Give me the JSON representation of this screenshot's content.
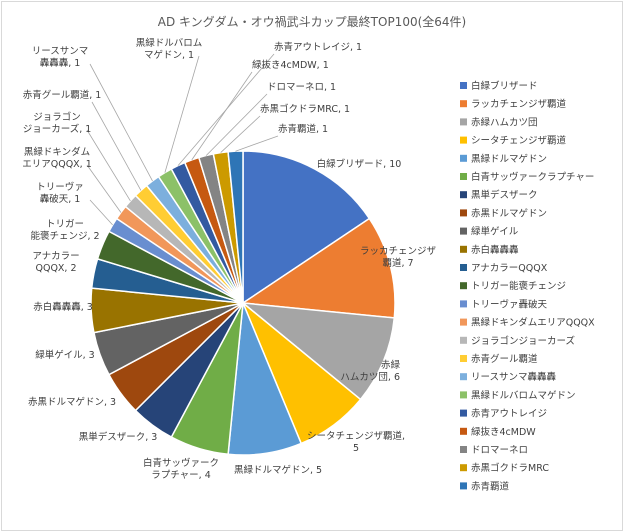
{
  "chart_data": {
    "type": "pie",
    "title": "AD キングダム・オウ禍武斗カップ最終TOP100(全64件)",
    "legend_position": "right",
    "slices": [
      {
        "label": "白緑ブリザード",
        "value": 10,
        "color": "#4472C4",
        "data_label": [
          "白緑ブリザード, 10"
        ]
      },
      {
        "label": "ラッカチェンジザ覇道",
        "value": 7,
        "color": "#ED7D31",
        "data_label": [
          "ラッカチェンジザ",
          "覇道, 7"
        ]
      },
      {
        "label": "赤緑ハムカツ団",
        "value": 6,
        "color": "#A5A5A5",
        "data_label": [
          "赤緑",
          "ハムカツ団, 6"
        ]
      },
      {
        "label": "シータチェンジザ覇道",
        "value": 5,
        "color": "#FFC000",
        "data_label": [
          "シータチェンジザ覇道,",
          "5"
        ]
      },
      {
        "label": "黒緑ドルマゲドン",
        "value": 5,
        "color": "#5B9BD5",
        "data_label": [
          "黒緑ドルマゲドン, 5"
        ]
      },
      {
        "label": "白青サッヴァークラプチャー",
        "value": 4,
        "color": "#70AD47",
        "data_label": [
          "白青サッヴァーク",
          "ラプチャー, 4"
        ]
      },
      {
        "label": "黒単デスザーク",
        "value": 3,
        "color": "#264478",
        "data_label": [
          "黒単デスザーク, 3"
        ]
      },
      {
        "label": "赤黒ドルマゲドン",
        "value": 3,
        "color": "#9E480E",
        "data_label": [
          "赤黒ドルマゲドン, 3"
        ]
      },
      {
        "label": "緑単ゲイル",
        "value": 3,
        "color": "#636363",
        "data_label": [
          "緑単ゲイル, 3"
        ]
      },
      {
        "label": "赤白轟轟轟",
        "value": 3,
        "color": "#997300",
        "data_label": [
          "赤白轟轟轟, 3"
        ]
      },
      {
        "label": "アナカラーQQQX",
        "value": 2,
        "color": "#255E91",
        "data_label": [
          "アナカラー",
          "QQQX, 2"
        ]
      },
      {
        "label": "トリガー能褒チェンジ",
        "value": 2,
        "color": "#43682B",
        "data_label": [
          "トリガー",
          "能褒チェンジ, 2"
        ]
      },
      {
        "label": "トリーヴァ轟破天",
        "value": 1,
        "color": "#698ED0",
        "data_label": [
          "トリーヴァ",
          "轟破天, 1"
        ]
      },
      {
        "label": "黒緑ドキンダムエリアQQQX",
        "value": 1,
        "color": "#F1975A",
        "data_label": [
          "黒緑ドキンダム",
          "エリアQQQX, 1"
        ]
      },
      {
        "label": "ジョラゴンジョーカーズ",
        "value": 1,
        "color": "#B7B7B7",
        "data_label": [
          "ジョラゴン",
          "ジョーカーズ, 1"
        ]
      },
      {
        "label": "赤青グール覇道",
        "value": 1,
        "color": "#FFCD33",
        "data_label": [
          "赤青グール覇道, 1"
        ]
      },
      {
        "label": "リースサンマ轟轟轟",
        "value": 1,
        "color": "#7CAFDD",
        "data_label": [
          "リースサンマ",
          "轟轟轟, 1"
        ]
      },
      {
        "label": "黒緑ドルバロムマゲドン",
        "value": 1,
        "color": "#8CC168",
        "data_label": [
          "黒緑ドルバロム",
          "マゲドン, 1"
        ]
      },
      {
        "label": "赤青アウトレイジ",
        "value": 1,
        "color": "#335AA1",
        "data_label": [
          "赤青アウトレイジ, 1"
        ]
      },
      {
        "label": "緑抜き4cMDW",
        "value": 1,
        "color": "#C65911",
        "data_label": [
          "緑抜き4cMDW, 1"
        ]
      },
      {
        "label": "ドロマーネロ",
        "value": 1,
        "color": "#848484",
        "data_label": [
          "ドロマーネロ, 1"
        ]
      },
      {
        "label": "赤黒ゴクドラMRC",
        "value": 1,
        "color": "#CC9A00",
        "data_label": [
          "赤黒ゴクドラMRC, 1"
        ]
      },
      {
        "label": "赤青覇道",
        "value": 1,
        "color": "#2E75B6",
        "data_label": [
          "赤青覇道, 1"
        ]
      }
    ]
  }
}
